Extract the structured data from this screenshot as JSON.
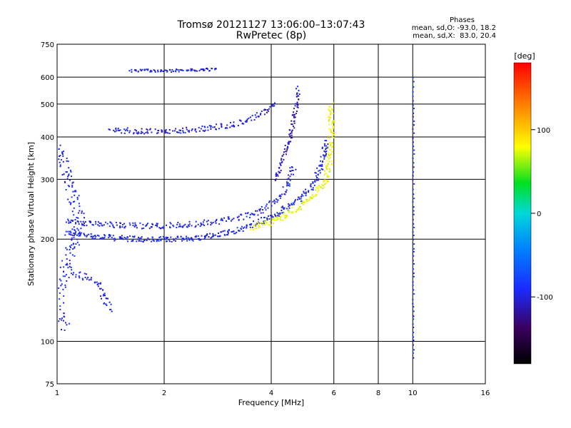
{
  "chart_data": {
    "type": "scatter",
    "title": "Tromsø 20121127 13:06:00–13:07:43",
    "subtitle": "RwPretec (8p)",
    "xlabel": "Frequency [MHz]",
    "ylabel": "Stationary phase Virtual Height [km]",
    "x_scale": "log",
    "y_scale": "log",
    "xlim": [
      1,
      16
    ],
    "ylim": [
      75,
      750
    ],
    "grid": true,
    "x_ticks": [
      1,
      2,
      4,
      6,
      8,
      10,
      16
    ],
    "x_tick_labels": [
      "1",
      "2",
      "4",
      "6",
      "8",
      "10",
      "16"
    ],
    "y_ticks": [
      75,
      100,
      200,
      300,
      400,
      500,
      600,
      750
    ],
    "y_tick_labels": [
      "75",
      "100",
      "200",
      "300",
      "400",
      "500",
      "600",
      "750"
    ],
    "phase_stats": {
      "heading": "Phases",
      "line_o": "mean, sd,O: -93.0, 18.2",
      "line_x": "mean, sd,X:  83.0, 20.4"
    },
    "colorbar": {
      "unit": "[deg]",
      "range": [
        -180,
        180
      ],
      "ticks": [
        100,
        0,
        -100
      ],
      "tick_labels": [
        "100",
        "0",
        "-100"
      ]
    },
    "traces": [
      {
        "name_hint": "O-mode trace lower",
        "phase": -95,
        "spread": 4,
        "density": 5,
        "points": [
          [
            1.05,
            210
          ],
          [
            1.2,
            206
          ],
          [
            1.5,
            202
          ],
          [
            1.8,
            200
          ],
          [
            2.2,
            201
          ],
          [
            2.6,
            204
          ],
          [
            3.0,
            210
          ],
          [
            3.4,
            218
          ],
          [
            3.8,
            228
          ],
          [
            4.2,
            240
          ],
          [
            4.6,
            255
          ],
          [
            5.0,
            275
          ],
          [
            5.3,
            300
          ],
          [
            5.5,
            330
          ],
          [
            5.7,
            390
          ]
        ]
      },
      {
        "name_hint": "O-mode trace upper",
        "phase": -95,
        "spread": 4,
        "density": 4,
        "points": [
          [
            1.05,
            228
          ],
          [
            1.3,
            222
          ],
          [
            1.6,
            220
          ],
          [
            2.0,
            220
          ],
          [
            2.4,
            222
          ],
          [
            2.8,
            226
          ],
          [
            3.2,
            232
          ],
          [
            3.6,
            240
          ],
          [
            4.0,
            255
          ],
          [
            4.3,
            275
          ],
          [
            4.5,
            300
          ],
          [
            4.6,
            330
          ]
        ]
      },
      {
        "name_hint": "X-mode trace",
        "phase": 80,
        "spread": 4,
        "density": 5,
        "points": [
          [
            3.5,
            218
          ],
          [
            4.0,
            226
          ],
          [
            4.5,
            240
          ],
          [
            5.0,
            258
          ],
          [
            5.4,
            280
          ],
          [
            5.7,
            300
          ],
          [
            5.8,
            340
          ],
          [
            5.85,
            380
          ],
          [
            5.9,
            430
          ],
          [
            5.85,
            500
          ]
        ]
      },
      {
        "name_hint": "second hop",
        "phase": -100,
        "spread": 4,
        "density": 4,
        "points": [
          [
            1.4,
            420
          ],
          [
            1.8,
            418
          ],
          [
            2.2,
            420
          ],
          [
            2.6,
            425
          ],
          [
            3.0,
            435
          ],
          [
            3.4,
            450
          ],
          [
            3.8,
            475
          ],
          [
            4.1,
            500
          ]
        ]
      },
      {
        "name_hint": "second hop steep",
        "phase": -110,
        "spread": 3,
        "density": 4,
        "points": [
          [
            4.1,
            300
          ],
          [
            4.3,
            350
          ],
          [
            4.5,
            400
          ],
          [
            4.6,
            450
          ],
          [
            4.7,
            500
          ],
          [
            4.75,
            560
          ]
        ]
      },
      {
        "name_hint": "third hop",
        "phase": -100,
        "spread": 2,
        "density": 4,
        "points": [
          [
            1.6,
            630
          ],
          [
            2.0,
            630
          ],
          [
            2.4,
            632
          ],
          [
            2.8,
            635
          ]
        ]
      },
      {
        "name_hint": "spread F",
        "phase": -95,
        "spread": 8,
        "density": 4,
        "points": [
          [
            1.0,
            380
          ],
          [
            1.05,
            320
          ],
          [
            1.1,
            270
          ],
          [
            1.15,
            240
          ],
          [
            1.1,
            190
          ],
          [
            1.05,
            160
          ],
          [
            1.0,
            130
          ],
          [
            1.05,
            110
          ]
        ]
      },
      {
        "name_hint": "low echoes",
        "phase": -95,
        "spread": 4,
        "density": 4,
        "points": [
          [
            1.1,
            160
          ],
          [
            1.2,
            155
          ],
          [
            1.3,
            150
          ],
          [
            1.35,
            135
          ],
          [
            1.4,
            125
          ]
        ]
      },
      {
        "name_hint": "10 MHz line",
        "phase": -90,
        "spread": 1,
        "density": 1,
        "points": [
          [
            10,
            600
          ],
          [
            10,
            500
          ],
          [
            10,
            400
          ],
          [
            10,
            300
          ],
          [
            10,
            250
          ],
          [
            10,
            200
          ],
          [
            10,
            160
          ],
          [
            10,
            130
          ],
          [
            10,
            110
          ],
          [
            10,
            90
          ]
        ]
      }
    ]
  }
}
